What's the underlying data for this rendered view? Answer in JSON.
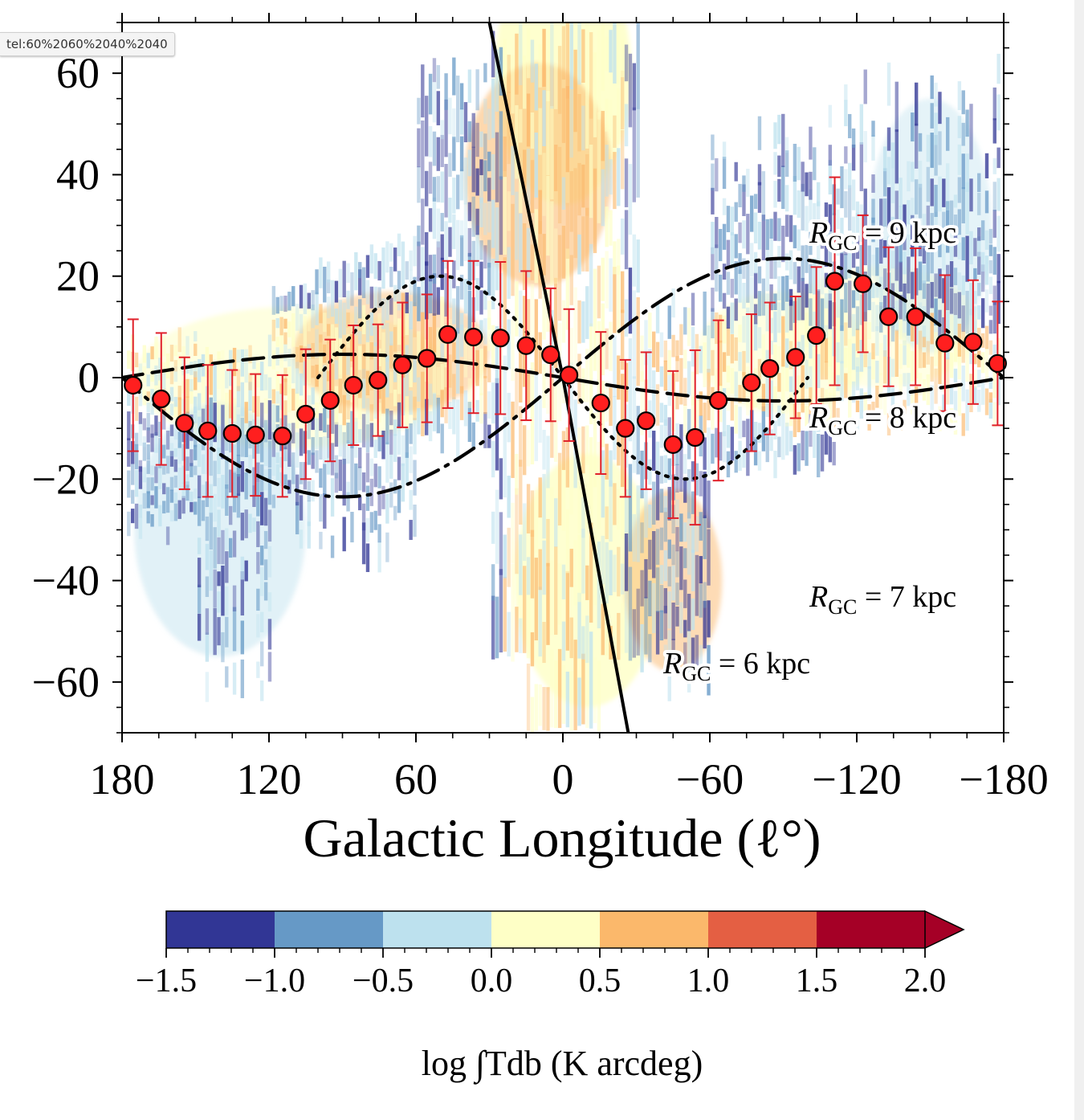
{
  "browser": {
    "status_url": "tel:60%2060%2040%2040"
  },
  "chart_data": {
    "type": "scatter",
    "xlabel": "Galactic Longitude (ℓ°)",
    "ylabel": "",
    "xlim": [
      180,
      -180
    ],
    "ylim": [
      -70,
      70
    ],
    "x_ticks": [
      180,
      120,
      60,
      0,
      -60,
      -120,
      -180
    ],
    "x_tick_labels": [
      "180",
      "120",
      "60",
      "0",
      "−60",
      "−120",
      "−180"
    ],
    "y_ticks": [
      60,
      40,
      20,
      0,
      -20,
      -40,
      -60
    ],
    "y_tick_labels": [
      "60",
      "40",
      "20",
      "0",
      "−20",
      "−40",
      "−60"
    ],
    "grid": false,
    "points": {
      "color": "#ff1f1f",
      "edge_color": "#000000",
      "errorbar_color": "#e0202a",
      "x": [
        175.5,
        164,
        154.5,
        145,
        135,
        125.5,
        114.5,
        105,
        95,
        85.5,
        75.5,
        65.5,
        55.5,
        47,
        36.5,
        25.5,
        15,
        5,
        -2.5,
        -15.5,
        -25.5,
        -34,
        -45,
        -54,
        -63.5,
        -77,
        -84.5,
        -95,
        -103.5,
        -111,
        -122.5,
        -133,
        -144,
        -156,
        -167.5,
        -177.5
      ],
      "y": [
        -1.5,
        -4.2,
        -9,
        -10.5,
        -11,
        -11.3,
        -11.5,
        -7.2,
        -4.5,
        -1.5,
        -0.5,
        2.5,
        3.8,
        8.5,
        8,
        7.8,
        6.3,
        4.5,
        0.5,
        -5,
        -10,
        -8.5,
        -13.2,
        -11.8,
        -4.5,
        -1,
        1.8,
        4,
        8.3,
        19,
        18.5,
        12,
        12,
        6.8,
        7,
        2.8
      ],
      "yerr": [
        13,
        13,
        13,
        13,
        12.5,
        12,
        12,
        12.8,
        12,
        11.8,
        11,
        12.3,
        12.6,
        14.5,
        15,
        15,
        14.7,
        13.1,
        13,
        14,
        13.5,
        13.5,
        14.5,
        17.2,
        15.8,
        13.5,
        13,
        12,
        13.5,
        20.5,
        13.5,
        13.7,
        13.5,
        13.4,
        12.2,
        12.2
      ]
    },
    "curves": [
      {
        "style": "solid",
        "label": "R_GC = 6 kpc",
        "x": [
          30,
          0,
          -26.7
        ],
        "y": [
          70,
          0,
          -70
        ]
      },
      {
        "style": "dotted",
        "label": "R_GC = 7 kpc",
        "amplitude": 20,
        "x_range": [
          100,
          -100
        ]
      },
      {
        "style": "dashed",
        "label": "R_GC = 8 kpc",
        "amplitude": 4.6,
        "x_range": [
          180,
          -180
        ]
      },
      {
        "style": "dashdot",
        "label": "R_GC = 9 kpc",
        "amplitude": 23.5,
        "x_range": [
          180,
          -180
        ]
      }
    ],
    "annotations": [
      {
        "text": "R",
        "sub": "GC",
        "rest": " = 9 kpc"
      },
      {
        "text": "R",
        "sub": "GC",
        "rest": " = 8 kpc"
      },
      {
        "text": "R",
        "sub": "GC",
        "rest": " = 7 kpc"
      },
      {
        "text": "R",
        "sub": "GC",
        "rest": " = 6 kpc"
      }
    ],
    "colorbar": {
      "label": "log ∫Tdb (K arcdeg)",
      "ticks": [
        "−1.5",
        "−1.0",
        "−0.5",
        "0.0",
        "0.5",
        "1.0",
        "1.5",
        "2.0"
      ],
      "values": [
        -1.5,
        -1.0,
        -0.5,
        0.0,
        0.5,
        1.0,
        1.5,
        2.0
      ],
      "colors": [
        "#313695",
        "#6699c6",
        "#bde1ee",
        "#feffc6",
        "#fbb86b",
        "#e45f43",
        "#a50026"
      ],
      "extend": "max"
    }
  }
}
